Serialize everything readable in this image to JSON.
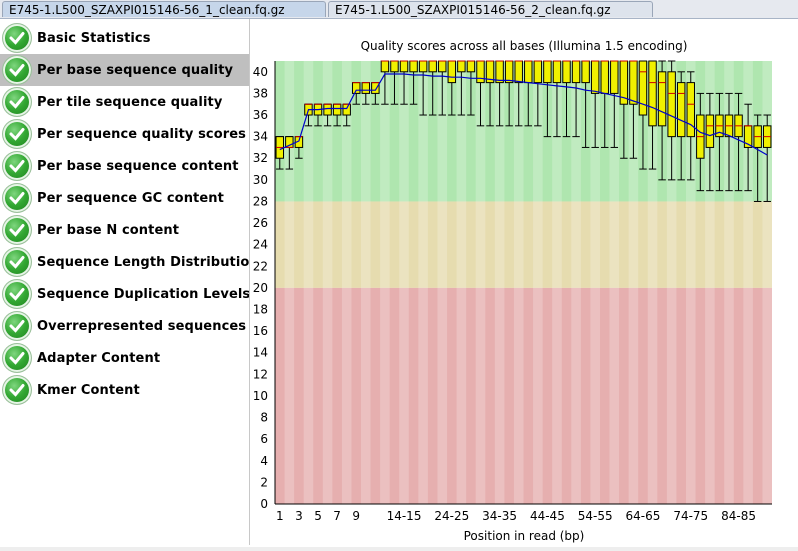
{
  "tabs": [
    {
      "label": "E745-1.L500_SZAXPI015146-56_1_clean.fq.gz",
      "active": true
    },
    {
      "label": "E745-1.L500_SZAXPI015146-56_2_clean.fq.gz",
      "active": false
    }
  ],
  "modules": [
    {
      "label": "Basic Statistics",
      "status": "pass",
      "selected": false
    },
    {
      "label": "Per base sequence quality",
      "status": "pass",
      "selected": true
    },
    {
      "label": "Per tile sequence quality",
      "status": "pass",
      "selected": false
    },
    {
      "label": "Per sequence quality scores",
      "status": "pass",
      "selected": false
    },
    {
      "label": "Per base sequence content",
      "status": "pass",
      "selected": false
    },
    {
      "label": "Per sequence GC content",
      "status": "pass",
      "selected": false
    },
    {
      "label": "Per base N content",
      "status": "pass",
      "selected": false
    },
    {
      "label": "Sequence Length Distribution",
      "status": "pass",
      "selected": false
    },
    {
      "label": "Sequence Duplication Levels",
      "status": "pass",
      "selected": false
    },
    {
      "label": "Overrepresented sequences",
      "status": "pass",
      "selected": false
    },
    {
      "label": "Adapter Content",
      "status": "pass",
      "selected": false
    },
    {
      "label": "Kmer Content",
      "status": "pass",
      "selected": false
    }
  ],
  "icons": {
    "status_pass": "check-circle-icon"
  },
  "colors": {
    "good_zone": "#afe6af",
    "warn_zone": "#e6dcaf",
    "bad_zone": "#e6afaf",
    "box_fill": "#f0f000",
    "mean_line": "#0000cc",
    "median_tick": "#cc0000",
    "check_green": "#33a833",
    "selected_row": "#bfbfbf"
  },
  "chart_data": {
    "type": "box",
    "title": "Quality scores across all bases (Illumina 1.5 encoding)",
    "xlabel": "Position in read (bp)",
    "ylabel": "",
    "ylim": [
      0,
      41
    ],
    "yticks": [
      0,
      2,
      4,
      6,
      8,
      10,
      12,
      14,
      16,
      18,
      20,
      22,
      24,
      26,
      28,
      30,
      32,
      34,
      36,
      38,
      40
    ],
    "zones": [
      {
        "name": "good",
        "from": 28,
        "to": 41
      },
      {
        "name": "warning",
        "from": 20,
        "to": 28
      },
      {
        "name": "poor",
        "from": 0,
        "to": 20
      }
    ],
    "categories": [
      "1",
      "2",
      "3",
      "4",
      "5",
      "6",
      "7",
      "8",
      "9",
      "10",
      "11",
      "12",
      "13",
      "14-15",
      "16-17",
      "18-19",
      "20-21",
      "22-23",
      "24-25",
      "26-27",
      "28-29",
      "30-31",
      "32-33",
      "34-35",
      "36-37",
      "38-39",
      "40-41",
      "42-43",
      "44-45",
      "46-47",
      "48-49",
      "50-51",
      "52-53",
      "54-55",
      "56-57",
      "58-59",
      "60-61",
      "62-63",
      "64-65",
      "66-67",
      "68-69",
      "70-71",
      "72-73",
      "74-75",
      "76-77",
      "78-79",
      "80-81",
      "82-83",
      "84-85",
      "86-87",
      "88-89",
      "90"
    ],
    "xtick_labels": [
      "1",
      "3",
      "5",
      "7",
      "9",
      "14-15",
      "24-25",
      "34-35",
      "44-45",
      "54-55",
      "64-65",
      "74-75",
      "84-85"
    ],
    "xtick_indices": [
      0,
      2,
      4,
      6,
      8,
      13,
      18,
      23,
      28,
      33,
      38,
      43,
      48
    ],
    "boxes": [
      {
        "low": 31,
        "q1": 32,
        "med": 33,
        "q3": 34,
        "high": 34
      },
      {
        "low": 31,
        "q1": 33,
        "med": 33,
        "q3": 34,
        "high": 34
      },
      {
        "low": 32,
        "q1": 33,
        "med": 34,
        "q3": 34,
        "high": 34
      },
      {
        "low": 35,
        "q1": 36,
        "med": 37,
        "q3": 37,
        "high": 37
      },
      {
        "low": 35,
        "q1": 36,
        "med": 37,
        "q3": 37,
        "high": 37
      },
      {
        "low": 35,
        "q1": 36,
        "med": 37,
        "q3": 37,
        "high": 37
      },
      {
        "low": 35,
        "q1": 36,
        "med": 37,
        "q3": 37,
        "high": 37
      },
      {
        "low": 35,
        "q1": 36,
        "med": 37,
        "q3": 37,
        "high": 37
      },
      {
        "low": 37,
        "q1": 38,
        "med": 39,
        "q3": 39,
        "high": 39
      },
      {
        "low": 37,
        "q1": 38,
        "med": 39,
        "q3": 39,
        "high": 39
      },
      {
        "low": 37,
        "q1": 38,
        "med": 39,
        "q3": 39,
        "high": 39
      },
      {
        "low": 37,
        "q1": 40,
        "med": 41,
        "q3": 41,
        "high": 41
      },
      {
        "low": 37,
        "q1": 40,
        "med": 41,
        "q3": 41,
        "high": 41
      },
      {
        "low": 37,
        "q1": 40,
        "med": 41,
        "q3": 41,
        "high": 41
      },
      {
        "low": 37,
        "q1": 40,
        "med": 41,
        "q3": 41,
        "high": 41
      },
      {
        "low": 36,
        "q1": 40,
        "med": 41,
        "q3": 41,
        "high": 41
      },
      {
        "low": 36,
        "q1": 40,
        "med": 41,
        "q3": 41,
        "high": 41
      },
      {
        "low": 36,
        "q1": 40,
        "med": 41,
        "q3": 41,
        "high": 41
      },
      {
        "low": 36,
        "q1": 39,
        "med": 41,
        "q3": 41,
        "high": 41
      },
      {
        "low": 36,
        "q1": 40,
        "med": 41,
        "q3": 41,
        "high": 41
      },
      {
        "low": 36,
        "q1": 40,
        "med": 41,
        "q3": 41,
        "high": 41
      },
      {
        "low": 35,
        "q1": 39,
        "med": 41,
        "q3": 41,
        "high": 41
      },
      {
        "low": 35,
        "q1": 39,
        "med": 41,
        "q3": 41,
        "high": 41
      },
      {
        "low": 35,
        "q1": 39,
        "med": 41,
        "q3": 41,
        "high": 41
      },
      {
        "low": 35,
        "q1": 39,
        "med": 41,
        "q3": 41,
        "high": 41
      },
      {
        "low": 35,
        "q1": 39,
        "med": 41,
        "q3": 41,
        "high": 41
      },
      {
        "low": 35,
        "q1": 39,
        "med": 41,
        "q3": 41,
        "high": 41
      },
      {
        "low": 35,
        "q1": 39,
        "med": 41,
        "q3": 41,
        "high": 41
      },
      {
        "low": 34,
        "q1": 39,
        "med": 41,
        "q3": 41,
        "high": 41
      },
      {
        "low": 34,
        "q1": 39,
        "med": 41,
        "q3": 41,
        "high": 41
      },
      {
        "low": 34,
        "q1": 39,
        "med": 41,
        "q3": 41,
        "high": 41
      },
      {
        "low": 34,
        "q1": 39,
        "med": 41,
        "q3": 41,
        "high": 41
      },
      {
        "low": 33,
        "q1": 39,
        "med": 41,
        "q3": 41,
        "high": 41
      },
      {
        "low": 33,
        "q1": 38,
        "med": 41,
        "q3": 41,
        "high": 41
      },
      {
        "low": 33,
        "q1": 38,
        "med": 41,
        "q3": 41,
        "high": 41
      },
      {
        "low": 33,
        "q1": 38,
        "med": 41,
        "q3": 41,
        "high": 41
      },
      {
        "low": 32,
        "q1": 37,
        "med": 41,
        "q3": 41,
        "high": 41
      },
      {
        "low": 32,
        "q1": 37,
        "med": 41,
        "q3": 41,
        "high": 41
      },
      {
        "low": 31,
        "q1": 36,
        "med": 40,
        "q3": 41,
        "high": 41
      },
      {
        "low": 31,
        "q1": 35,
        "med": 39,
        "q3": 41,
        "high": 41
      },
      {
        "low": 30,
        "q1": 35,
        "med": 39,
        "q3": 40,
        "high": 41
      },
      {
        "low": 30,
        "q1": 34,
        "med": 38,
        "q3": 40,
        "high": 41
      },
      {
        "low": 30,
        "q1": 34,
        "med": 38,
        "q3": 39,
        "high": 40
      },
      {
        "low": 30,
        "q1": 34,
        "med": 37,
        "q3": 39,
        "high": 40
      },
      {
        "low": 29,
        "q1": 32,
        "med": 34,
        "q3": 36,
        "high": 38
      },
      {
        "low": 29,
        "q1": 33,
        "med": 35,
        "q3": 36,
        "high": 38
      },
      {
        "low": 29,
        "q1": 34,
        "med": 35,
        "q3": 36,
        "high": 38
      },
      {
        "low": 29,
        "q1": 34,
        "med": 35,
        "q3": 36,
        "high": 38
      },
      {
        "low": 29,
        "q1": 34,
        "med": 35,
        "q3": 36,
        "high": 38
      },
      {
        "low": 29,
        "q1": 33,
        "med": 35,
        "q3": 35,
        "high": 37
      },
      {
        "low": 28,
        "q1": 33,
        "med": 34,
        "q3": 35,
        "high": 36
      },
      {
        "low": 28,
        "q1": 33,
        "med": 34,
        "q3": 35,
        "high": 36
      }
    ],
    "mean": [
      32.8,
      33.2,
      33.6,
      36.5,
      36.5,
      36.6,
      36.6,
      36.6,
      38.3,
      38.3,
      38.3,
      39.8,
      39.8,
      39.8,
      39.7,
      39.7,
      39.6,
      39.6,
      39.5,
      39.5,
      39.4,
      39.4,
      39.3,
      39.2,
      39.2,
      39.1,
      39.0,
      38.9,
      38.8,
      38.7,
      38.6,
      38.5,
      38.3,
      38.2,
      38.0,
      37.8,
      37.6,
      37.3,
      37.0,
      36.7,
      36.3,
      35.9,
      35.5,
      35.1,
      34.4,
      34.1,
      34.4,
      34.1,
      33.7,
      33.3,
      32.8,
      32.3
    ]
  }
}
